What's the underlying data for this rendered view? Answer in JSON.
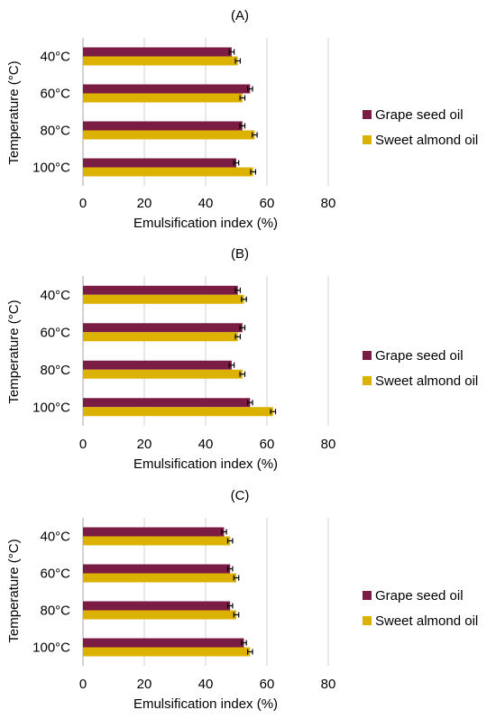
{
  "colors": {
    "grape": "#7b1c45",
    "almond": "#dcb100",
    "grid": "#d0d0d0",
    "axis": "#a6a6a6",
    "errorbar": "#000000"
  },
  "chart_data": [
    {
      "type": "bar",
      "orientation": "horizontal",
      "title": "(A)",
      "xlabel": "Emulsification index (%)",
      "ylabel": "Temperature (°C)",
      "categories": [
        "40°C",
        "60°C",
        "80°C",
        "100°C"
      ],
      "xlim": [
        0,
        80
      ],
      "xticks": [
        "0",
        "20",
        "40",
        "60",
        "80"
      ],
      "grid": "vertical",
      "legend_position": "right",
      "series": [
        {
          "name": "Grape seed oil",
          "values": [
            48.5,
            54.5,
            52,
            50
          ],
          "errors": [
            0.8,
            0.8,
            0.8,
            0.8
          ]
        },
        {
          "name": "Sweet almond oil",
          "values": [
            50.5,
            52,
            56,
            55.5
          ],
          "errors": [
            0.8,
            0.8,
            0.8,
            0.8
          ]
        }
      ]
    },
    {
      "type": "bar",
      "orientation": "horizontal",
      "title": "(B)",
      "xlabel": "Emulsification index (%)",
      "ylabel": "Temperature (°C)",
      "categories": [
        "40°C",
        "60°C",
        "80°C",
        "100°C"
      ],
      "xlim": [
        0,
        80
      ],
      "xticks": [
        "0",
        "20",
        "40",
        "60",
        "80"
      ],
      "grid": "vertical",
      "legend_position": "right",
      "series": [
        {
          "name": "Grape seed oil",
          "values": [
            50.5,
            52,
            48.5,
            54.5
          ],
          "errors": [
            0.8,
            0.8,
            0.8,
            0.8
          ]
        },
        {
          "name": "Sweet almond oil",
          "values": [
            52.5,
            50.5,
            52,
            62
          ],
          "errors": [
            0.8,
            0.8,
            0.8,
            0.8
          ]
        }
      ]
    },
    {
      "type": "bar",
      "orientation": "horizontal",
      "title": "(C)",
      "xlabel": "Emulsification index (%)",
      "ylabel": "Temperature (°C)",
      "categories": [
        "40°C",
        "60°C",
        "80°C",
        "100°C"
      ],
      "xlim": [
        0,
        80
      ],
      "xticks": [
        "0",
        "20",
        "40",
        "60",
        "80"
      ],
      "grid": "vertical",
      "legend_position": "right",
      "series": [
        {
          "name": "Grape seed oil",
          "values": [
            46,
            48,
            48,
            52.5
          ],
          "errors": [
            0.8,
            0.8,
            0.8,
            0.8
          ]
        },
        {
          "name": "Sweet almond oil",
          "values": [
            48,
            50,
            50,
            54.5
          ],
          "errors": [
            0.8,
            0.8,
            0.8,
            0.8
          ]
        }
      ]
    }
  ]
}
